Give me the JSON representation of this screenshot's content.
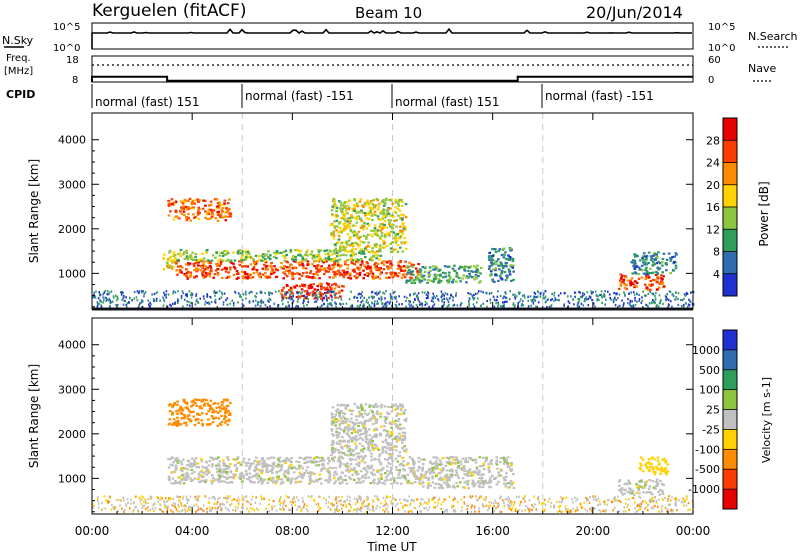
{
  "header": {
    "station": "Kerguelen (fitACF)",
    "beam": "Beam 10",
    "date": "20/Jun/2014"
  },
  "nsky_panel": {
    "left_label": "N.Sky",
    "ticks_left": [
      "10^5",
      "10^0"
    ],
    "ticks_right": [
      "10^5",
      "10^0"
    ],
    "right_label": "N.Search"
  },
  "freq_panel": {
    "label_line1": "Freq.",
    "label_line2": "[MHz]",
    "ticks_left": [
      "18",
      "8"
    ],
    "ticks_right": [
      "60",
      "0"
    ],
    "right_label": "Nave"
  },
  "cpid": {
    "label": "CPID",
    "segments": [
      {
        "text": "normal (fast) 151",
        "start_h": 0
      },
      {
        "text": "normal (fast) -151",
        "start_h": 6
      },
      {
        "text": "normal (fast) 151",
        "start_h": 12
      },
      {
        "text": "normal (fast) -151",
        "start_h": 18
      }
    ]
  },
  "power_colorbar": {
    "label": "Power [dB]",
    "ticks": [
      "28",
      "24",
      "20",
      "16",
      "12",
      "8",
      "4"
    ],
    "colors": [
      "#e60000",
      "#ff3c00",
      "#ff8c00",
      "#ffd200",
      "#8cc63f",
      "#2e9e5b",
      "#2f6fb0",
      "#1f2fd0"
    ]
  },
  "velocity_colorbar": {
    "label": "Velocity [m s-1]",
    "ticks": [
      "1000",
      "500",
      "100",
      "25",
      "-25",
      "-100",
      "-500",
      "-1000"
    ],
    "colors": [
      "#1f2fd0",
      "#2f6fb0",
      "#2e9e5b",
      "#8cc63f",
      "#c0c0c0",
      "#ffd200",
      "#ff8c00",
      "#ff3c00",
      "#e60000"
    ]
  },
  "axes": {
    "ylabel": "Slant Range [km]",
    "yticks": [
      "4000",
      "3000",
      "2000",
      "1000"
    ],
    "xticks": [
      "00:00",
      "04:00",
      "08:00",
      "12:00",
      "16:00",
      "20:00",
      "00:00"
    ],
    "xlabel": "Time UT"
  },
  "chart_data": {
    "type": "heatmap",
    "title": "Kerguelen (fitACF) Beam 10 20/Jun/2014",
    "xlabel": "Time UT",
    "ylabel": "Slant Range [km]",
    "xlim_hours": [
      0,
      24
    ],
    "ylim_km": [
      200,
      4600
    ],
    "panels": [
      "Power [dB]",
      "Velocity [m s-1]"
    ],
    "frequency_mhz": {
      "segments": [
        {
          "from_h": 0,
          "to_h": 3,
          "value": 10
        },
        {
          "from_h": 3,
          "to_h": 17,
          "value": 8.5
        },
        {
          "from_h": 17,
          "to_h": 24,
          "value": 10
        }
      ]
    },
    "power_regions": [
      {
        "t0": 3.0,
        "t1": 5.5,
        "r0": 2200,
        "r1": 2700,
        "value": 24
      },
      {
        "t0": 2.8,
        "t1": 3.3,
        "r0": 1100,
        "r1": 1500,
        "value": 18
      },
      {
        "t0": 3.3,
        "t1": 13.0,
        "r0": 900,
        "r1": 1300,
        "value": 26
      },
      {
        "t0": 3.0,
        "t1": 11.5,
        "r0": 1300,
        "r1": 1550,
        "value": 14
      },
      {
        "t0": 7.5,
        "t1": 10.0,
        "r0": 450,
        "r1": 800,
        "value": 28
      },
      {
        "t0": 9.5,
        "t1": 12.5,
        "r0": 1500,
        "r1": 2700,
        "value": 16
      },
      {
        "t0": 12.5,
        "t1": 15.5,
        "r0": 800,
        "r1": 1200,
        "value": 10
      },
      {
        "t0": 15.8,
        "t1": 16.8,
        "r0": 800,
        "r1": 1600,
        "value": 8
      },
      {
        "t0": 21.0,
        "t1": 22.8,
        "r0": 650,
        "r1": 1000,
        "value": 26
      },
      {
        "t0": 21.5,
        "t1": 23.3,
        "r0": 1000,
        "r1": 1500,
        "value": 8
      }
    ],
    "velocity_regions": [
      {
        "t0": 3.0,
        "t1": 5.5,
        "r0": 2200,
        "r1": 2800,
        "value": -300
      },
      {
        "t0": 3.0,
        "t1": 13.0,
        "r0": 900,
        "r1": 1500,
        "value": 0
      },
      {
        "t0": 9.5,
        "t1": 12.5,
        "r0": 1500,
        "r1": 2700,
        "value": 0
      },
      {
        "t0": 13.0,
        "t1": 16.8,
        "r0": 800,
        "r1": 1500,
        "value": 0
      },
      {
        "t0": 21.0,
        "t1": 22.8,
        "r0": 650,
        "r1": 1000,
        "value": 0
      },
      {
        "t0": 21.8,
        "t1": 23.0,
        "r0": 1100,
        "r1": 1500,
        "value": -60
      }
    ]
  }
}
